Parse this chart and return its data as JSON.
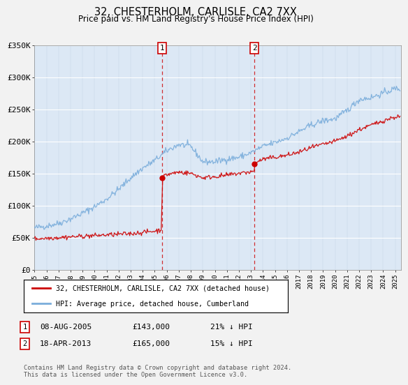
{
  "title": "32, CHESTERHOLM, CARLISLE, CA2 7XX",
  "subtitle": "Price paid vs. HM Land Registry's House Price Index (HPI)",
  "ylim": [
    0,
    350000
  ],
  "xlim_start": 1995.0,
  "xlim_end": 2025.5,
  "yticks": [
    0,
    50000,
    100000,
    150000,
    200000,
    250000,
    300000,
    350000
  ],
  "ytick_labels": [
    "£0",
    "£50K",
    "£100K",
    "£150K",
    "£200K",
    "£250K",
    "£300K",
    "£350K"
  ],
  "sale1_x": 2005.6,
  "sale1_y": 143000,
  "sale1_label": "1",
  "sale2_x": 2013.3,
  "sale2_y": 165000,
  "sale2_label": "2",
  "red_color": "#cc0000",
  "blue_color": "#7aaddb",
  "plot_bg_color": "#dce8f5",
  "fig_bg_color": "#f2f2f2",
  "legend_entry1": "32, CHESTERHOLM, CARLISLE, CA2 7XX (detached house)",
  "legend_entry2": "HPI: Average price, detached house, Cumberland",
  "table_row1": [
    "1",
    "08-AUG-2005",
    "£143,000",
    "21% ↓ HPI"
  ],
  "table_row2": [
    "2",
    "18-APR-2013",
    "£165,000",
    "15% ↓ HPI"
  ],
  "footnote": "Contains HM Land Registry data © Crown copyright and database right 2024.\nThis data is licensed under the Open Government Licence v3.0.",
  "xtick_years": [
    1995,
    1996,
    1997,
    1998,
    1999,
    2000,
    2001,
    2002,
    2003,
    2004,
    2005,
    2006,
    2007,
    2008,
    2009,
    2010,
    2011,
    2012,
    2013,
    2014,
    2015,
    2016,
    2017,
    2018,
    2019,
    2020,
    2021,
    2022,
    2023,
    2024,
    2025
  ]
}
